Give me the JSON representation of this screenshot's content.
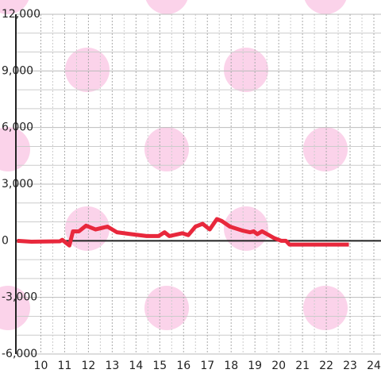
{
  "chart_data": {
    "type": "line",
    "x": [
      9.0,
      9.6,
      10.8,
      10.9,
      11.2,
      11.35,
      11.6,
      11.9,
      12.3,
      12.8,
      13.2,
      13.8,
      14.45,
      14.95,
      15.2,
      15.4,
      15.95,
      16.2,
      16.5,
      16.8,
      17.1,
      17.4,
      17.6,
      17.95,
      18.45,
      18.8,
      18.95,
      19.1,
      19.3,
      19.8,
      20.1,
      20.3,
      20.45,
      22.95
    ],
    "series": [
      {
        "color": "#e8283c",
        "values": [
          0,
          -50,
          -30,
          50,
          -250,
          500,
          500,
          800,
          600,
          750,
          450,
          350,
          250,
          250,
          450,
          250,
          400,
          300,
          750,
          900,
          600,
          1150,
          1050,
          750,
          550,
          450,
          500,
          350,
          500,
          150,
          0,
          0,
          -200,
          -200
        ]
      }
    ],
    "xlim": [
      8.95,
      24.3
    ],
    "xticks": [
      10,
      11,
      12,
      13,
      14,
      15,
      16,
      17,
      18,
      19,
      20,
      21,
      22,
      23,
      24
    ],
    "ylim": [
      -6000,
      12000
    ],
    "yticks": [
      {
        "value": -6000,
        "label": "-6,000"
      },
      {
        "value": -3000,
        "label": "-3,000"
      },
      0,
      {
        "value": 3000,
        "label": "3,000"
      },
      {
        "value": 6000,
        "label": "6,000"
      },
      {
        "value": 9000,
        "label": "9,000"
      },
      {
        "value": 12000,
        "label": "12,000"
      }
    ],
    "grid": true
  }
}
